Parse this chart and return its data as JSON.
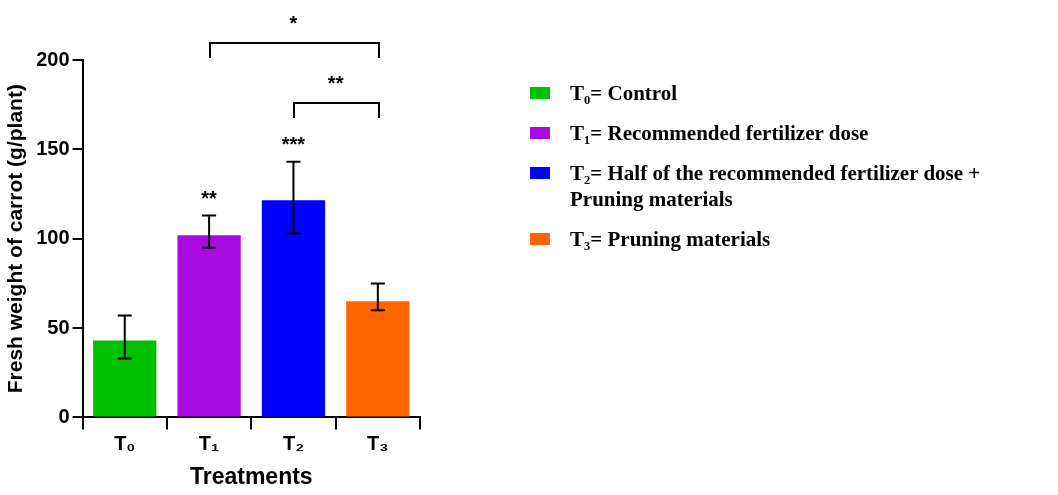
{
  "chart_data": {
    "type": "bar",
    "xlabel": "Treatments",
    "ylabel": "Fresh weight of carrot (g/plant)",
    "categories": [
      "T₀",
      "T₁",
      "T₂",
      "T₃"
    ],
    "series": [
      {
        "name": "T₀= Control",
        "color": "#00c000",
        "values": [
          43,
          null,
          null,
          null
        ],
        "errors": [
          [
            33,
            57
          ],
          null,
          null,
          null
        ]
      },
      {
        "name": "T₁= Recommended fertilizer dose",
        "color": "#a80ae0",
        "values": [
          null,
          102,
          null,
          null
        ],
        "errors": [
          null,
          [
            95,
            113
          ],
          null,
          null
        ]
      },
      {
        "name": "T₂= Half of the recommended fertilizer dose + Pruning materials",
        "color": "#0000ff",
        "values": [
          null,
          null,
          121.5,
          null
        ],
        "errors": [
          null,
          null,
          [
            103,
            143
          ],
          null
        ]
      },
      {
        "name": "T₃= Pruning materials",
        "color": "#ff6600",
        "values": [
          null,
          null,
          null,
          65
        ],
        "errors": [
          null,
          null,
          null,
          [
            60,
            75
          ]
        ]
      }
    ],
    "ylim": [
      0,
      200
    ],
    "yticks": [
      0,
      50,
      100,
      150,
      200
    ],
    "legend": "right",
    "annotations": [
      {
        "text": "**",
        "x": "T₁",
        "y": 113
      },
      {
        "text": "***",
        "x": "T₂",
        "y": 143
      },
      "*",
      "**"
    ]
  }
}
